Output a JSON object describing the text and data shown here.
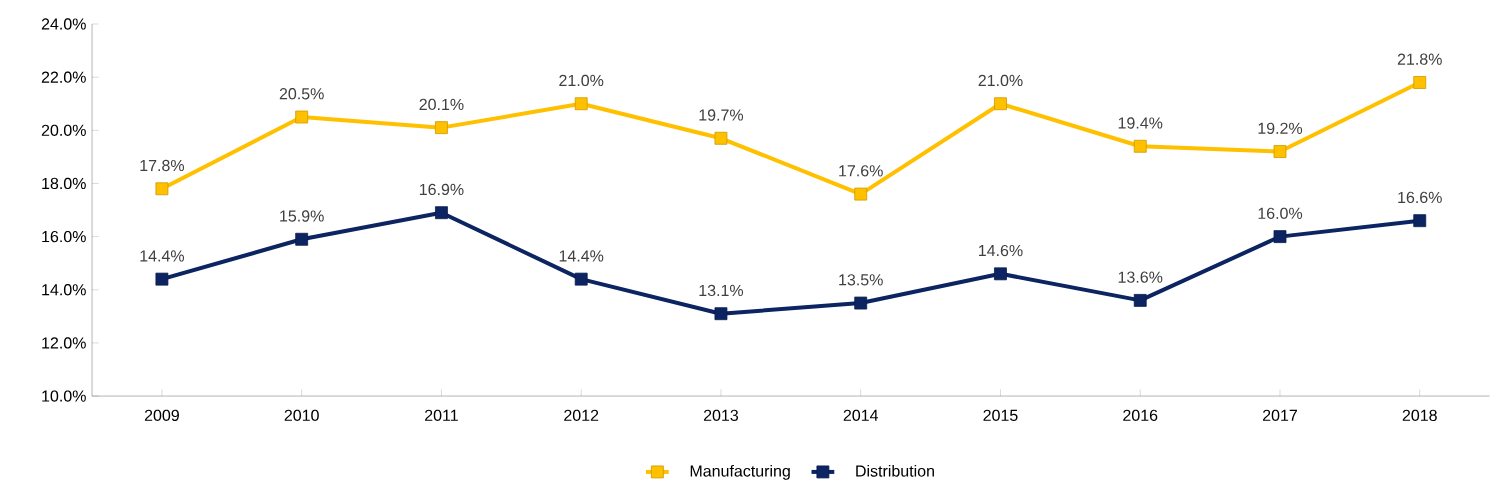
{
  "chart_data": {
    "type": "line",
    "categories": [
      "2009",
      "2010",
      "2011",
      "2012",
      "2013",
      "2014",
      "2015",
      "2016",
      "2017",
      "2018"
    ],
    "series": [
      {
        "name": "Manufacturing",
        "color": "#ffc000",
        "marker": "square",
        "values": [
          17.8,
          20.5,
          20.1,
          21.0,
          19.7,
          17.6,
          21.0,
          19.4,
          19.2,
          21.8
        ],
        "value_labels": [
          "17.8%",
          "20.5%",
          "20.1%",
          "21.0%",
          "19.7%",
          "17.6%",
          "21.0%",
          "19.4%",
          "19.2%",
          "21.8%"
        ]
      },
      {
        "name": "Distribution",
        "color": "#0c2461",
        "marker": "square",
        "values": [
          14.4,
          15.9,
          16.9,
          14.4,
          13.1,
          13.5,
          14.6,
          13.6,
          16.0,
          16.6
        ],
        "value_labels": [
          "14.4%",
          "15.9%",
          "16.9%",
          "14.4%",
          "13.1%",
          "13.5%",
          "14.6%",
          "13.6%",
          "16.0%",
          "16.6%"
        ]
      }
    ],
    "ylim": [
      10,
      24
    ],
    "yticks": [
      {
        "value": 10,
        "label": "10.0%"
      },
      {
        "value": 12,
        "label": "12.0%"
      },
      {
        "value": 14,
        "label": "14.0%"
      },
      {
        "value": 16,
        "label": "16.0%"
      },
      {
        "value": 18,
        "label": "18.0%"
      },
      {
        "value": 20,
        "label": "20.0%"
      },
      {
        "value": 22,
        "label": "22.0%"
      },
      {
        "value": 24,
        "label": "24.0%"
      }
    ],
    "grid": false,
    "legend": "bottom",
    "line_style": "solid"
  }
}
